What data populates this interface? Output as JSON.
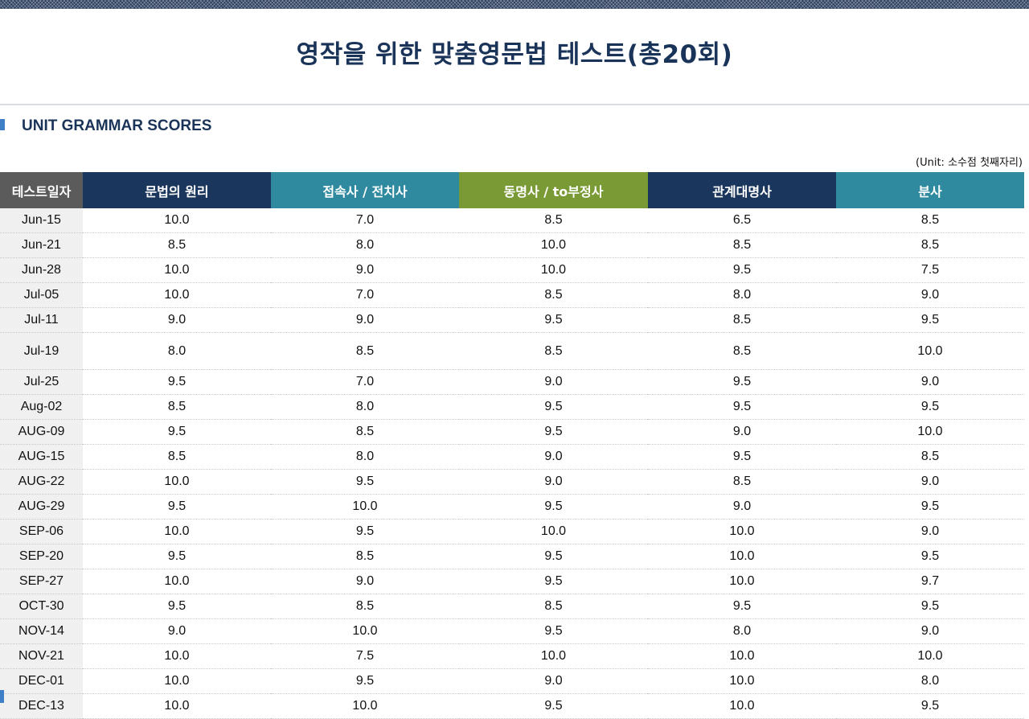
{
  "title": "영작을 위한 맞춤영문법 테스트(총20회)",
  "section_title": "UNIT GRAMMAR SCORES",
  "unit_note": "(Unit: 소수점 첫째자리)",
  "columns": [
    {
      "label": "테스트일자",
      "color": "#5b5b5b"
    },
    {
      "label": "문법의 원리",
      "color": "#1b365c"
    },
    {
      "label": "접속사 / 전치사",
      "color": "#2f8aa0"
    },
    {
      "label": "동명사 /  to부정사",
      "color": "#7a9a36"
    },
    {
      "label": "관계대명사",
      "color": "#1b365c"
    },
    {
      "label": "분사",
      "color": "#2f8aa0"
    }
  ],
  "rows": [
    [
      "Jun-15",
      "10.0",
      "7.0",
      "8.5",
      "6.5",
      "8.5"
    ],
    [
      "Jun-21",
      "8.5",
      "8.0",
      "10.0",
      "8.5",
      "8.5"
    ],
    [
      "Jun-28",
      "10.0",
      "9.0",
      "10.0",
      "9.5",
      "7.5"
    ],
    [
      "Jul-05",
      "10.0",
      "7.0",
      "8.5",
      "8.0",
      "9.0"
    ],
    [
      "Jul-11",
      "9.0",
      "9.0",
      "9.5",
      "8.5",
      "9.5"
    ],
    [
      "Jul-19",
      "8.0",
      "8.5",
      "8.5",
      "8.5",
      "10.0"
    ],
    [
      "Jul-25",
      "9.5",
      "7.0",
      "9.0",
      "9.5",
      "9.0"
    ],
    [
      "Aug-02",
      "8.5",
      "8.0",
      "9.5",
      "9.5",
      "9.5"
    ],
    [
      "AUG-09",
      "9.5",
      "8.5",
      "9.5",
      "9.0",
      "10.0"
    ],
    [
      "AUG-15",
      "8.5",
      "8.0",
      "9.0",
      "9.5",
      "8.5"
    ],
    [
      "AUG-22",
      "10.0",
      "9.5",
      "9.0",
      "8.5",
      "9.0"
    ],
    [
      "AUG-29",
      "9.5",
      "10.0",
      "9.5",
      "9.0",
      "9.5"
    ],
    [
      "SEP-06",
      "10.0",
      "9.5",
      "10.0",
      "10.0",
      "9.0"
    ],
    [
      "SEP-20",
      "9.5",
      "8.5",
      "9.5",
      "10.0",
      "9.5"
    ],
    [
      "SEP-27",
      "10.0",
      "9.0",
      "9.5",
      "10.0",
      "9.7"
    ],
    [
      "OCT-30",
      "9.5",
      "8.5",
      "8.5",
      "9.5",
      "9.5"
    ],
    [
      "NOV-14",
      "9.0",
      "10.0",
      "9.5",
      "8.0",
      "9.0"
    ],
    [
      "NOV-21",
      "10.0",
      "7.5",
      "10.0",
      "10.0",
      "10.0"
    ],
    [
      "DEC-01",
      "10.0",
      "9.5",
      "9.0",
      "10.0",
      "8.0"
    ],
    [
      "DEC-13",
      "10.0",
      "10.0",
      "9.5",
      "10.0",
      "9.5"
    ]
  ]
}
